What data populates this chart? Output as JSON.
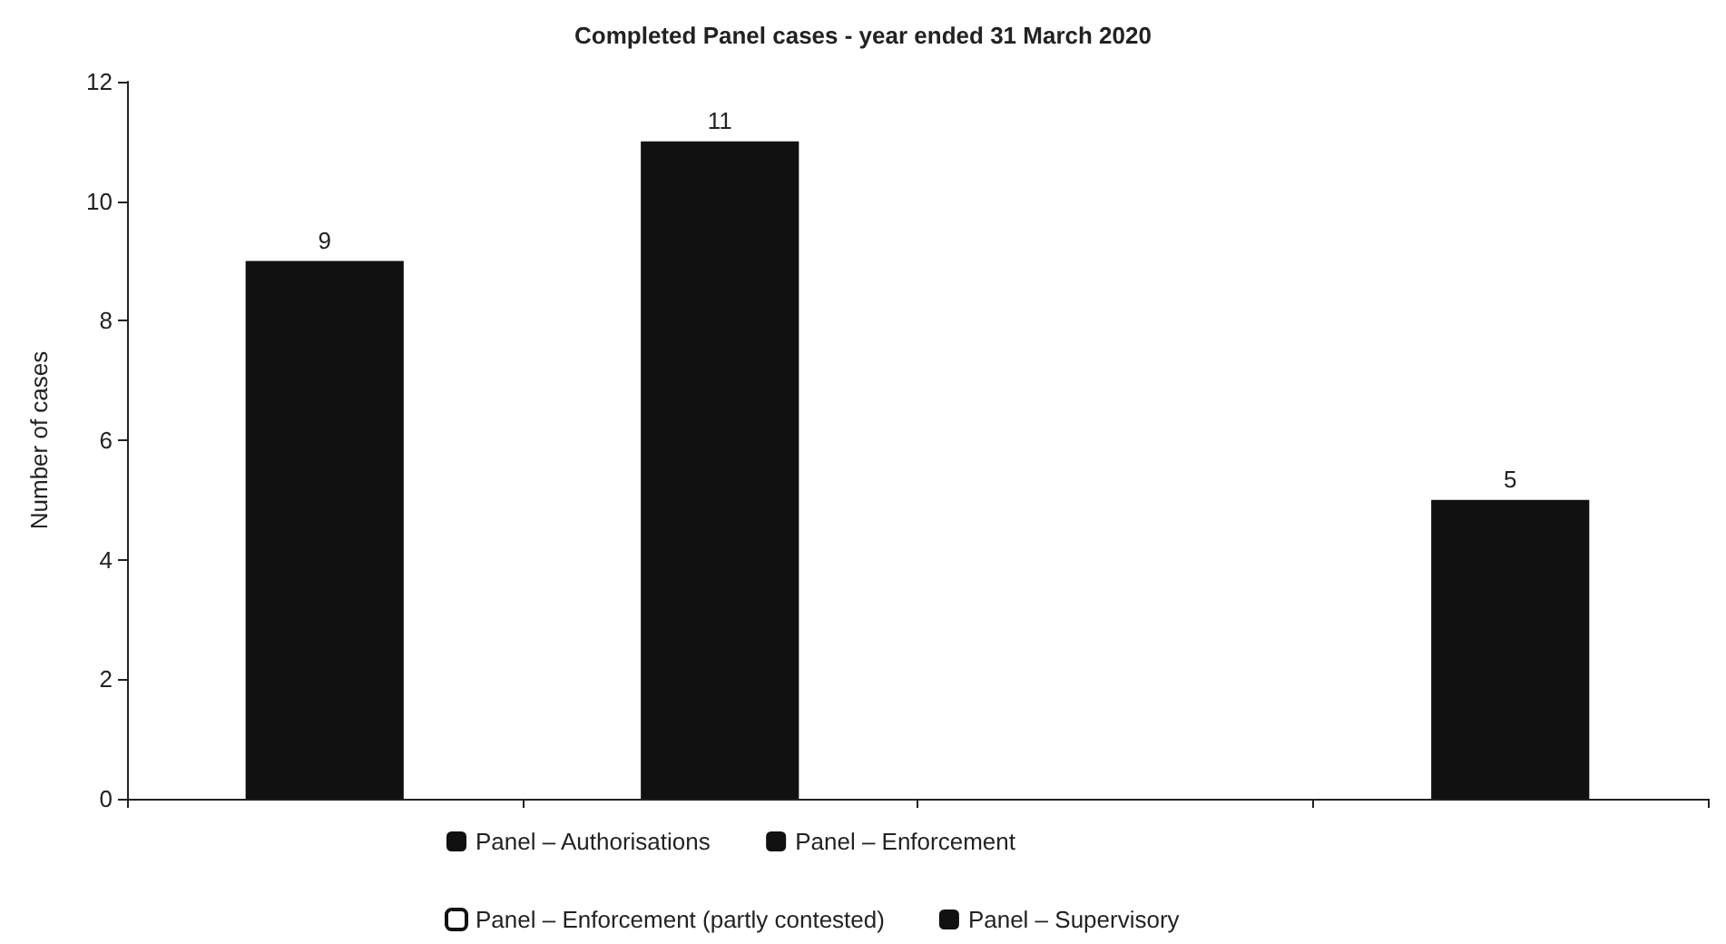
{
  "chart_data": {
    "type": "bar",
    "title": "Completed Panel cases - year ended 31 March 2020",
    "ylabel": "Number of cases",
    "categories": [
      null,
      null,
      null,
      null
    ],
    "stacked": true,
    "series": [
      {
        "name": "Panel – Authorisations",
        "color": "#111111",
        "values": [
          9,
          null,
          null,
          null
        ]
      },
      {
        "name": "Panel – Enforcement",
        "color": "#111111",
        "values": [
          null,
          11,
          null,
          null
        ]
      },
      {
        "name": "Panel – Enforcement (partly contested)",
        "color": "#ffffff",
        "values": [
          null,
          null,
          null,
          null
        ]
      },
      {
        "name": "Panel – Supervisory",
        "color": "#111111",
        "values": [
          null,
          null,
          null,
          5
        ]
      }
    ],
    "ylim": [
      0,
      12
    ],
    "yticks": [
      0,
      2,
      4,
      6,
      8,
      10,
      12
    ],
    "grid": false,
    "legend": "bottom",
    "data_labels": true
  }
}
